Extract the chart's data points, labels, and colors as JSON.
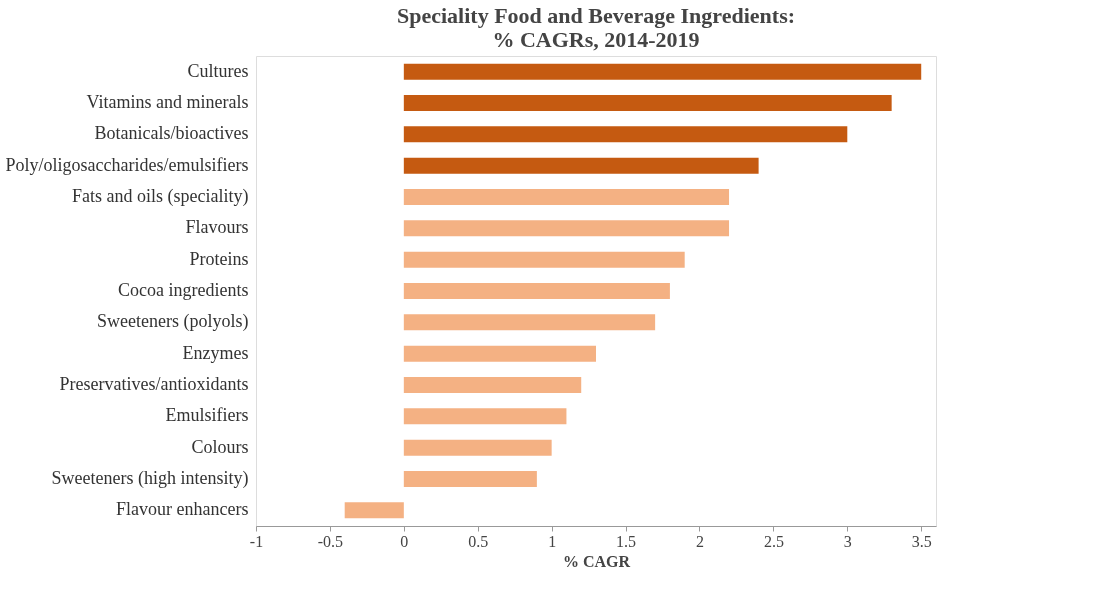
{
  "chart_data": {
    "type": "bar",
    "orientation": "horizontal",
    "title": [
      "Speciality Food and Beverage Ingredients:",
      "% CAGRs, 2014-2019"
    ],
    "xlabel": "% CAGR",
    "categories": [
      "Cultures",
      "Vitamins and minerals",
      "Botanicals/bioactives",
      "Poly/oligosaccharides/emulsifiers",
      "Fats and oils (speciality)",
      "Flavours",
      "Proteins",
      "Cocoa ingredients",
      "Sweeteners (polyols)",
      "Enzymes",
      "Preservatives/antioxidants",
      "Emulsifiers",
      "Colours",
      "Sweeteners (high intensity)",
      "Flavour enhancers"
    ],
    "values": [
      3.5,
      3.3,
      3.0,
      2.4,
      2.2,
      2.2,
      1.9,
      1.8,
      1.7,
      1.3,
      1.2,
      1.1,
      1.0,
      0.9,
      -0.4
    ],
    "colors": [
      "#c55a11",
      "#c55a11",
      "#c55a11",
      "#c55a11",
      "#f4b183",
      "#f4b183",
      "#f4b183",
      "#f4b183",
      "#f4b183",
      "#f4b183",
      "#f4b183",
      "#f4b183",
      "#f4b183",
      "#f4b183",
      "#f4b183"
    ],
    "xlim": [
      -1,
      3.6
    ],
    "xticks": [
      -1,
      -0.5,
      0,
      0.5,
      1,
      1.5,
      2,
      2.5,
      3,
      3.5
    ],
    "grid": false
  }
}
